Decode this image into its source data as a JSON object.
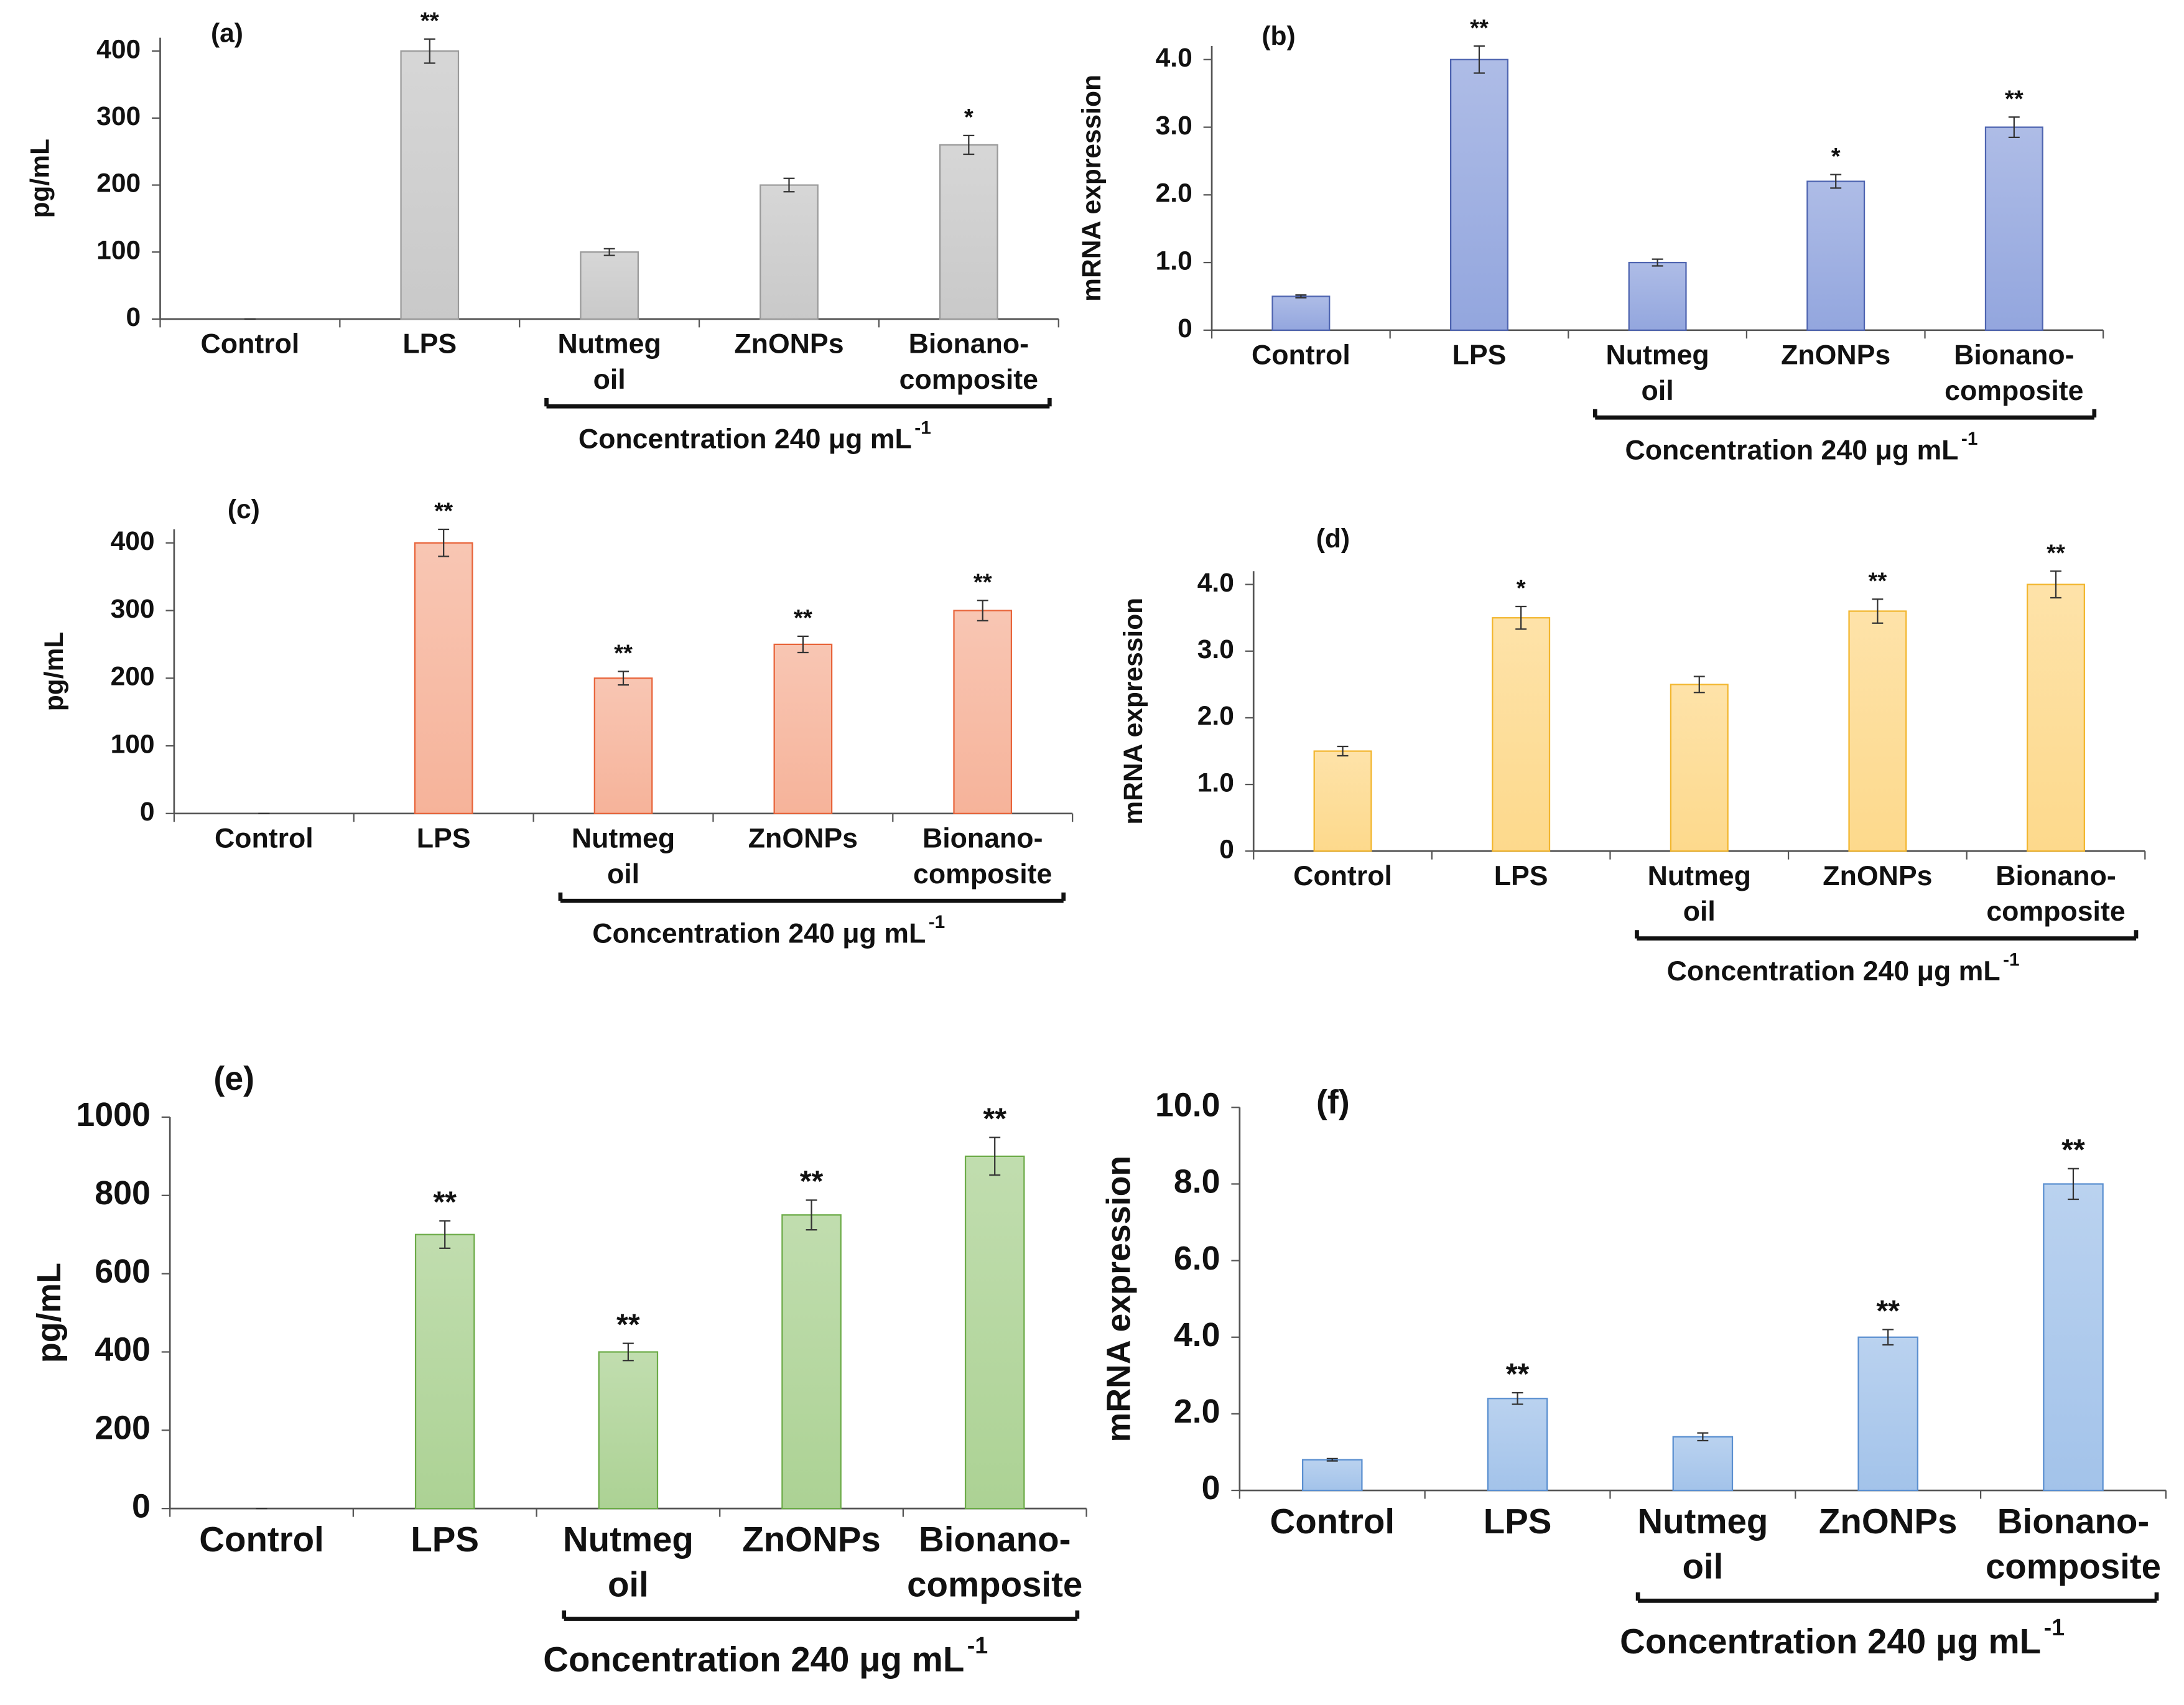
{
  "chart_data": [
    {
      "type": "bar",
      "panel_label": "(a)",
      "y_label": "pg/mL",
      "categories": [
        "Control",
        "LPS",
        "Nutmeg\noil",
        "ZnONPs",
        "Bionano-\ncomposite"
      ],
      "values": [
        0,
        400,
        100,
        200,
        260
      ],
      "errors": [
        0,
        18,
        5,
        10,
        14
      ],
      "significance": [
        null,
        "**",
        null,
        null,
        "*"
      ],
      "color": "#c9c9c9",
      "edge_color": "#9a9a9a",
      "ylim": [
        0,
        420
      ],
      "yticks": [
        0,
        100,
        200,
        300,
        400
      ],
      "annotation": {
        "text": "Concentration 240  μg mL",
        "superscript": "-1"
      }
    },
    {
      "type": "bar",
      "panel_label": "(b)",
      "y_label": "mRNA expression",
      "categories": [
        "Control",
        "LPS",
        "Nutmeg\noil",
        "ZnONPs",
        "Bionano-\ncomposite"
      ],
      "values": [
        0.5,
        4.0,
        1.0,
        2.2,
        3.0
      ],
      "errors": [
        0.02,
        0.2,
        0.05,
        0.1,
        0.15
      ],
      "significance": [
        null,
        "**",
        null,
        "*",
        "**"
      ],
      "color": "#93a6de",
      "edge_color": "#4e64b0",
      "ylim": [
        0,
        4.2
      ],
      "yticks": [
        0,
        {
          "value": 1,
          "label": "1.0"
        },
        {
          "value": 2,
          "label": "2.0"
        },
        {
          "value": 3,
          "label": "3.0"
        },
        {
          "value": 4,
          "label": "4.0"
        }
      ],
      "annotation": {
        "text": "Concentration 240  μg mL",
        "superscript": "-1"
      }
    },
    {
      "type": "bar",
      "panel_label": "(c)",
      "y_label": "pg/mL",
      "categories": [
        "Control",
        "LPS",
        "Nutmeg\noil",
        "ZnONPs",
        "Bionano-\ncomposite"
      ],
      "values": [
        0,
        400,
        200,
        250,
        300
      ],
      "errors": [
        0,
        20,
        10,
        12,
        15
      ],
      "significance": [
        null,
        "**",
        "**",
        "**",
        "**"
      ],
      "color": "#f6b39a",
      "edge_color": "#e8643a",
      "ylim": [
        0,
        420
      ],
      "yticks": [
        0,
        100,
        200,
        300,
        400
      ],
      "annotation": {
        "text": "Concentration 240  μg mL",
        "superscript": "-1"
      }
    },
    {
      "type": "bar",
      "panel_label": "(d)",
      "y_label": "mRNA expression",
      "categories": [
        "Control",
        "LPS",
        "Nutmeg\noil",
        "ZnONPs",
        "Bionano-\ncomposite"
      ],
      "values": [
        1.5,
        3.5,
        2.5,
        3.6,
        4.0
      ],
      "errors": [
        0.07,
        0.17,
        0.12,
        0.18,
        0.2
      ],
      "significance": [
        null,
        "*",
        null,
        "**",
        "**"
      ],
      "color": "#fdd98c",
      "edge_color": "#f2b62e",
      "ylim": [
        0,
        4.2
      ],
      "yticks": [
        0,
        {
          "value": 1,
          "label": "1.0"
        },
        {
          "value": 2,
          "label": "2.0"
        },
        {
          "value": 3,
          "label": "3.0"
        },
        {
          "value": 4,
          "label": "4.0"
        }
      ],
      "annotation": {
        "text": "Concentration 240  μg mL",
        "superscript": "-1"
      }
    },
    {
      "type": "bar",
      "panel_label": "(e)",
      "y_label": "pg/mL",
      "categories": [
        "Control",
        "LPS",
        "Nutmeg\noil",
        "ZnONPs",
        "Bionano-\ncomposite"
      ],
      "values": [
        0,
        700,
        400,
        750,
        900
      ],
      "errors": [
        0,
        35,
        22,
        38,
        48
      ],
      "significance": [
        null,
        "**",
        "**",
        "**",
        "**"
      ],
      "color": "#acd294",
      "edge_color": "#6cab48",
      "ylim": [
        0,
        1000
      ],
      "yticks": [
        0,
        200,
        400,
        600,
        800,
        1000
      ],
      "annotation": {
        "text": "Concentration 240  μg mL",
        "superscript": "-1"
      }
    },
    {
      "type": "bar",
      "panel_label": "(f)",
      "y_label": "mRNA expression",
      "categories": [
        "Control",
        "LPS",
        "Nutmeg\noil",
        "ZnONPs",
        "Bionano-\ncomposite"
      ],
      "values": [
        0.8,
        2.4,
        1.4,
        4.0,
        8.0
      ],
      "errors": [
        0.03,
        0.15,
        0.1,
        0.2,
        0.4
      ],
      "significance": [
        null,
        "**",
        null,
        "**",
        "**"
      ],
      "color": "#a3c3ea",
      "edge_color": "#5a8fd0",
      "ylim": [
        0,
        10
      ],
      "yticks": [
        0,
        {
          "value": 2,
          "label": "2.0"
        },
        {
          "value": 4,
          "label": "4.0"
        },
        {
          "value": 6,
          "label": "6.0"
        },
        {
          "value": 8,
          "label": "8.0"
        },
        {
          "value": 10,
          "label": "10.0"
        }
      ],
      "annotation": {
        "text": "Concentration 240  μg mL",
        "superscript": "-1"
      }
    }
  ]
}
